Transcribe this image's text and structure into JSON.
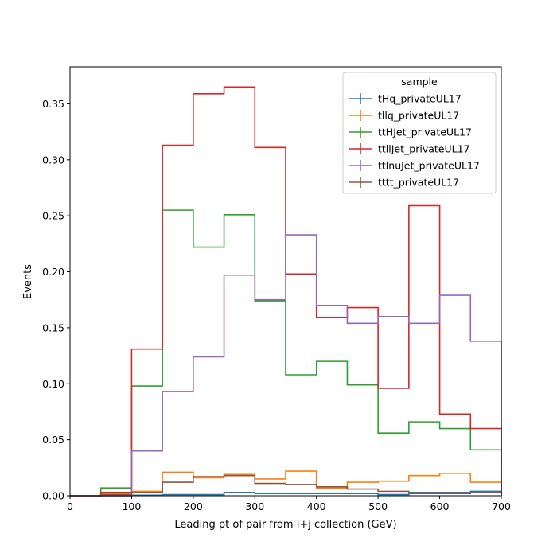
{
  "chart_data": {
    "type": "histogram-step",
    "xlabel": "Leading pt of pair from l+j collection (GeV)",
    "ylabel": "Events",
    "xlim": [
      0,
      700
    ],
    "ylim": [
      0,
      0.383
    ],
    "xticks": [
      0,
      100,
      200,
      300,
      400,
      500,
      600,
      700
    ],
    "yticks": [
      0.0,
      0.05,
      0.1,
      0.15,
      0.2,
      0.25,
      0.3,
      0.35
    ],
    "xtick_labels": [
      "0",
      "100",
      "200",
      "300",
      "400",
      "500",
      "600",
      "700"
    ],
    "ytick_labels": [
      "0.00",
      "0.05",
      "0.10",
      "0.15",
      "0.20",
      "0.25",
      "0.30",
      "0.35"
    ],
    "grid": false,
    "legend": {
      "title": "sample",
      "placement": "top-right"
    },
    "bin_edges": [
      0,
      50,
      100,
      150,
      200,
      250,
      300,
      350,
      400,
      450,
      500,
      550,
      600,
      650,
      700
    ],
    "series": [
      {
        "name": "tHq_privateUL17",
        "color": "#1f77b4",
        "values": [
          0,
          0,
          0.0005,
          0.001,
          0.001,
          0.003,
          0.002,
          0.002,
          0.002,
          0.002,
          0.001,
          0.002,
          0.002,
          0.004
        ]
      },
      {
        "name": "tllq_privateUL17",
        "color": "#ff7f0e",
        "values": [
          0,
          0.002,
          0.004,
          0.021,
          0.016,
          0.019,
          0.015,
          0.022,
          0.007,
          0.012,
          0.013,
          0.018,
          0.02,
          0.012
        ]
      },
      {
        "name": "ttHJet_privateUL17",
        "color": "#2ca02c",
        "values": [
          0,
          0.007,
          0.098,
          0.255,
          0.222,
          0.251,
          0.174,
          0.108,
          0.12,
          0.099,
          0.056,
          0.066,
          0.06,
          0.041
        ]
      },
      {
        "name": "ttllJet_privateUL17",
        "color": "#d62728",
        "values": [
          0,
          0.003,
          0.131,
          0.313,
          0.359,
          0.365,
          0.311,
          0.198,
          0.159,
          0.168,
          0.096,
          0.259,
          0.073,
          0.06
        ]
      },
      {
        "name": "ttlnuJet_privateUL17",
        "color": "#9467bd",
        "values": [
          0,
          0,
          0.04,
          0.093,
          0.124,
          0.197,
          0.175,
          0.233,
          0.17,
          0.154,
          0.16,
          0.154,
          0.179,
          0.138
        ]
      },
      {
        "name": "tttt_privateUL17",
        "color": "#8c564b",
        "values": [
          0,
          0.001,
          0.003,
          0.012,
          0.017,
          0.018,
          0.011,
          0.01,
          0.008,
          0.006,
          0.004,
          0.003,
          0.003,
          0.003
        ]
      }
    ]
  }
}
